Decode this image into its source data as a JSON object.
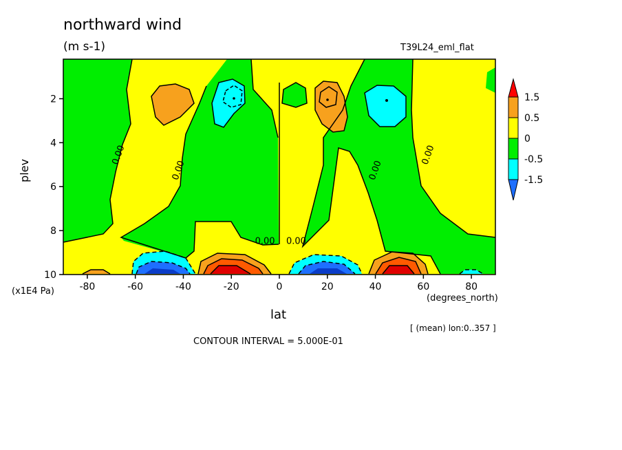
{
  "header": {
    "title": "northward wind",
    "units": "(m s-1)",
    "run_id": "T39L24_eml_flat"
  },
  "footer": {
    "mean_note": "[ (mean) lon:0..357 ]",
    "contour_interval": "CONTOUR INTERVAL = 5.000E-01"
  },
  "chart_data": {
    "type": "heatmap",
    "title": "northward wind",
    "units": "(m s-1)",
    "xlabel": "lat",
    "xunit": "(degrees_north)",
    "ylabel": "plev",
    "yunit": "(x1E4 Pa)",
    "xlim": [
      -90,
      90
    ],
    "ylim": [
      10,
      0.2
    ],
    "x_ticks": [
      -80,
      -60,
      -40,
      -20,
      0,
      20,
      40,
      60,
      80
    ],
    "x_tick_labels": [
      "-80",
      "-60",
      "-40",
      "-20",
      "0",
      "20",
      "40",
      "60",
      "80"
    ],
    "y_ticks": [
      2,
      4,
      6,
      8,
      10
    ],
    "y_tick_labels": [
      "2",
      "4",
      "6",
      "8",
      "10"
    ],
    "contour_interval": 0.5,
    "contour_labels": [
      {
        "text": "0.00",
        "x": -66,
        "y": 4.6
      },
      {
        "text": "0.00",
        "x": -41,
        "y": 5.3
      },
      {
        "text": "0.00",
        "x": -6,
        "y": 8.6
      },
      {
        "text": "0.00",
        "x": 7,
        "y": 8.6
      },
      {
        "text": "0.00",
        "x": 41,
        "y": 5.3
      },
      {
        "text": "0.00",
        "x": 63,
        "y": 4.6
      }
    ],
    "colorbar": {
      "levels": [
        "1.5",
        "0.5",
        "0",
        "-0.5",
        "-1.5"
      ],
      "colors": [
        "#ff0000",
        "#f7a11d",
        "#ffff00",
        "#00ee00",
        "#00ffff",
        "#1e6fff"
      ]
    },
    "colors": {
      "strong_positive": "#e00000",
      "positive_1": "#ff5a00",
      "positive_05": "#f7a11d",
      "near_zero_pos": "#ffff00",
      "near_zero_neg": "#00ee00",
      "negative_05": "#00ffff",
      "negative_1": "#1e6fff",
      "strong_negative": "#0a3cc8"
    },
    "regions": [
      {
        "name": "orange-cell-west",
        "value": 0.7,
        "x": [
          -52,
          -38
        ],
        "y": [
          1.4,
          3.2
        ]
      },
      {
        "name": "cyan-cell-west",
        "value": -0.7,
        "x": [
          -28,
          -18
        ],
        "y": [
          1.0,
          3.0
        ]
      },
      {
        "name": "orange-cell-east",
        "value": 0.7,
        "x": [
          13,
          28
        ],
        "y": [
          1.1,
          3.3
        ]
      },
      {
        "name": "cyan-cell-east",
        "value": -0.7,
        "x": [
          34,
          52
        ],
        "y": [
          1.0,
          3.0
        ]
      },
      {
        "name": "green-cell-eq",
        "value": -0.3,
        "x": [
          4,
          12
        ],
        "y": [
          1.1,
          2.3
        ]
      },
      {
        "name": "positive-jet-sh",
        "value": 2.5,
        "x": [
          -33,
          -5
        ],
        "y": [
          8.9,
          10
        ]
      },
      {
        "name": "negative-jet-sh",
        "value": -2.0,
        "x": [
          -58,
          -33
        ],
        "y": [
          8.8,
          10
        ]
      },
      {
        "name": "negative-jet-nh",
        "value": -2.0,
        "x": [
          8,
          33
        ],
        "y": [
          9.0,
          10
        ]
      },
      {
        "name": "positive-jet-nh",
        "value": 2.5,
        "x": [
          36,
          63
        ],
        "y": [
          8.8,
          10
        ]
      },
      {
        "name": "positive-edge-sp",
        "value": 0.6,
        "x": [
          -82,
          -68
        ],
        "y": [
          9.7,
          10
        ]
      },
      {
        "name": "negative-edge-np",
        "value": -0.6,
        "x": [
          68,
          86
        ],
        "y": [
          9.6,
          10
        ]
      }
    ]
  }
}
